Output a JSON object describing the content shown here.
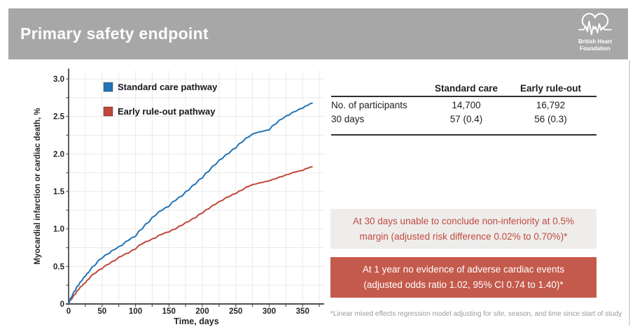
{
  "header": {
    "title": "Primary safety endpoint",
    "logo": {
      "line1": "British Heart",
      "line2": "Foundation"
    }
  },
  "chart_data": {
    "type": "line",
    "title": "",
    "xlabel": "Time, days",
    "ylabel": "Myocardial infarction or cardiac death, %",
    "xlim": [
      0,
      365
    ],
    "ylim": [
      0,
      3.0
    ],
    "xticks": [
      0,
      50,
      100,
      150,
      200,
      250,
      300,
      350
    ],
    "ytick_labels": [
      "0",
      "0.5",
      "1.0",
      "1.5",
      "2.0",
      "2.5",
      "3.0"
    ],
    "grid": {
      "on": true,
      "x_interval_days": 25,
      "y_interval_pct": 0.25
    },
    "legend_position": "top-left-inside",
    "x": [
      0,
      5,
      10,
      15,
      20,
      25,
      30,
      40,
      50,
      60,
      70,
      80,
      90,
      100,
      110,
      120,
      130,
      140,
      150,
      160,
      170,
      180,
      190,
      200,
      210,
      220,
      230,
      240,
      250,
      260,
      270,
      280,
      290,
      300,
      310,
      320,
      330,
      340,
      350,
      358,
      365
    ],
    "series": [
      {
        "name": "Standard care pathway",
        "color": "#2374b5",
        "values": [
          0,
          0.1,
          0.18,
          0.25,
          0.31,
          0.37,
          0.42,
          0.52,
          0.61,
          0.67,
          0.73,
          0.78,
          0.85,
          0.9,
          1.0,
          1.09,
          1.18,
          1.25,
          1.3,
          1.38,
          1.44,
          1.52,
          1.6,
          1.68,
          1.77,
          1.86,
          1.94,
          2.01,
          2.08,
          2.16,
          2.23,
          2.28,
          2.3,
          2.32,
          2.4,
          2.47,
          2.52,
          2.57,
          2.61,
          2.65,
          2.68
        ]
      },
      {
        "name": "Early rule-out pathway",
        "color": "#c1463a",
        "values": [
          0,
          0.07,
          0.13,
          0.19,
          0.24,
          0.28,
          0.33,
          0.41,
          0.47,
          0.53,
          0.58,
          0.64,
          0.68,
          0.73,
          0.8,
          0.84,
          0.88,
          0.93,
          0.96,
          1.0,
          1.05,
          1.1,
          1.15,
          1.21,
          1.27,
          1.33,
          1.38,
          1.43,
          1.47,
          1.52,
          1.57,
          1.6,
          1.62,
          1.64,
          1.67,
          1.7,
          1.73,
          1.76,
          1.78,
          1.81,
          1.83
        ]
      }
    ]
  },
  "table": {
    "columns": [
      "",
      "Standard care",
      "Early rule-out"
    ],
    "rows": [
      {
        "label": "No. of participants",
        "standard_care": "14,700",
        "early_rule_out": "16,792"
      },
      {
        "label": "30 days",
        "standard_care": "57 (0.4)",
        "early_rule_out": "56 (0.3)"
      }
    ]
  },
  "callouts": {
    "non_inferiority": {
      "lines": [
        "At 30 days unable to conclude non-inferiority at 0.5%",
        "margin (adjusted risk difference 0.02% to 0.70%)*"
      ],
      "text_color": "#c14a3e",
      "bg_color": "#eeedec"
    },
    "one_year": {
      "lines": [
        "At 1 year no evidence of adverse cardiac events",
        "(adjusted odds ratio 1.02, 95% CI 0.74 to 1.40)*"
      ],
      "text_color": "#ffffff",
      "bg_color": "#c35a4b"
    }
  },
  "footnote": "*Linear mixed effects regression model adjusting for site, season, and time since start of study",
  "colors": {
    "header_bg": "#a7a7a7",
    "standard_care": "#2374b5",
    "early_rule_out": "#c1463a",
    "axis": "#4f4f4f",
    "gridline": "#e9e9e9"
  }
}
